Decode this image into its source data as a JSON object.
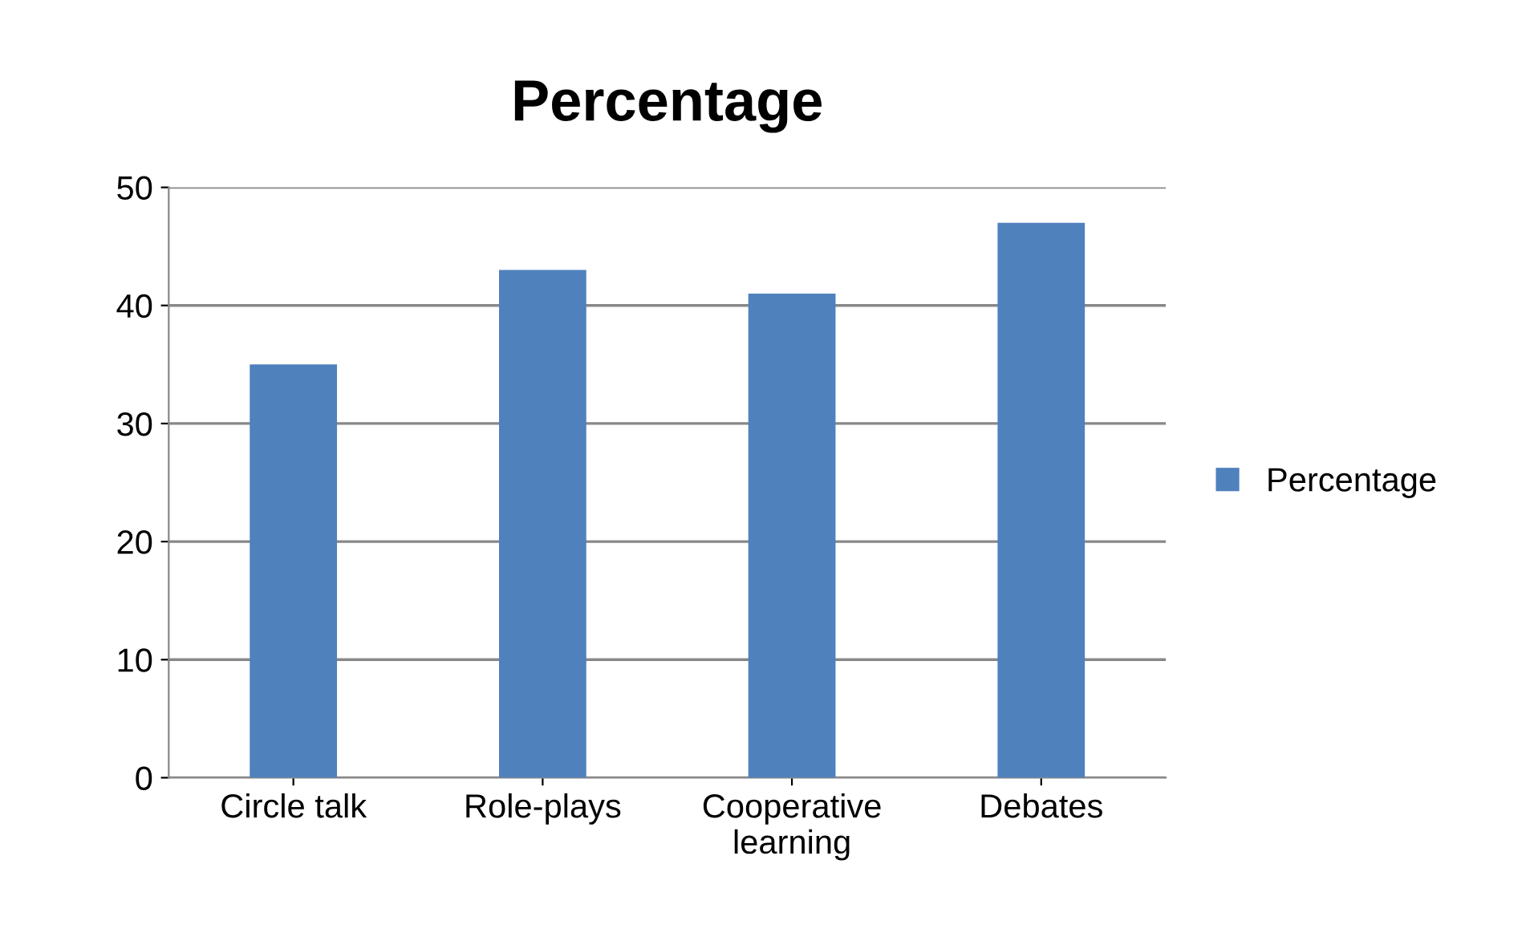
{
  "chart_data": {
    "type": "bar",
    "title": "Percentage",
    "categories": [
      "Circle talk",
      "Role-plays",
      "Cooperative\nlearning",
      "Debates"
    ],
    "series": [
      {
        "name": "Percentage",
        "color": "#4f81bd",
        "values": [
          35,
          43,
          41,
          47
        ]
      }
    ],
    "ylim": [
      0,
      50
    ],
    "yticks": [
      0,
      10,
      20,
      30,
      40,
      50
    ],
    "grid": "y",
    "legend": "right"
  }
}
